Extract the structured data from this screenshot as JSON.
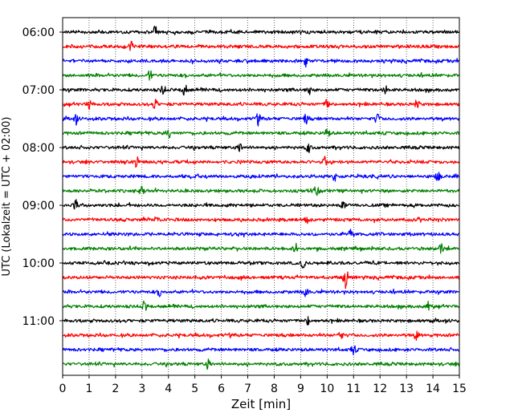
{
  "chart_data": {
    "type": "line",
    "title": "",
    "xlabel": "Zeit  [min]",
    "ylabel": "UTC (Lokalzeit = UTC + 02:00)",
    "xlim": [
      0,
      15
    ],
    "x_ticks": [
      "0",
      "1",
      "2",
      "3",
      "4",
      "5",
      "6",
      "7",
      "8",
      "9",
      "10",
      "11",
      "12",
      "13",
      "14",
      "15"
    ],
    "y_ticks": [
      "06:00",
      "07:00",
      "08:00",
      "09:00",
      "10:00",
      "11:00"
    ],
    "grid": "vertical dotted at each minute",
    "legend": "none",
    "trace_interval_min": 15,
    "colors": [
      "#000000",
      "#ff0000",
      "#0000ff",
      "#008000"
    ],
    "series": [
      {
        "start": "06:00",
        "events_min": [
          3.5
        ]
      },
      {
        "start": "06:15",
        "events_min": [
          2.6
        ]
      },
      {
        "start": "06:30",
        "events_min": [
          9.2
        ]
      },
      {
        "start": "06:45",
        "events_min": [
          3.3
        ]
      },
      {
        "start": "07:00",
        "events_min": [
          3.8,
          4.6,
          9.3,
          12.2
        ]
      },
      {
        "start": "07:15",
        "events_min": [
          1.0,
          3.5,
          10.0,
          13.4
        ]
      },
      {
        "start": "07:30",
        "events_min": [
          0.5,
          7.4,
          9.2,
          11.9
        ]
      },
      {
        "start": "07:45",
        "events_min": [
          4.0,
          10.0
        ]
      },
      {
        "start": "08:00",
        "events_min": [
          6.7,
          9.3
        ]
      },
      {
        "start": "08:15",
        "events_min": [
          2.8,
          9.9
        ]
      },
      {
        "start": "08:30",
        "events_min": [
          10.3,
          14.2
        ]
      },
      {
        "start": "08:45",
        "events_min": [
          3.0,
          9.6
        ]
      },
      {
        "start": "09:00",
        "events_min": [
          0.5,
          10.6
        ]
      },
      {
        "start": "09:15",
        "events_min": [
          3.6,
          9.2
        ]
      },
      {
        "start": "09:30",
        "events_min": [
          10.9
        ]
      },
      {
        "start": "09:45",
        "events_min": [
          8.8,
          14.3
        ]
      },
      {
        "start": "10:00",
        "events_min": [
          9.1
        ]
      },
      {
        "start": "10:15",
        "events_min": [
          10.7
        ]
      },
      {
        "start": "10:30",
        "events_min": [
          3.7,
          9.2
        ]
      },
      {
        "start": "10:45",
        "events_min": [
          3.1,
          13.8
        ]
      },
      {
        "start": "11:00",
        "events_min": [
          9.3
        ]
      },
      {
        "start": "11:15",
        "events_min": [
          10.5,
          13.4
        ]
      },
      {
        "start": "11:30",
        "events_min": [
          11.0
        ]
      },
      {
        "start": "11:45",
        "events_min": [
          5.5
        ]
      }
    ]
  }
}
